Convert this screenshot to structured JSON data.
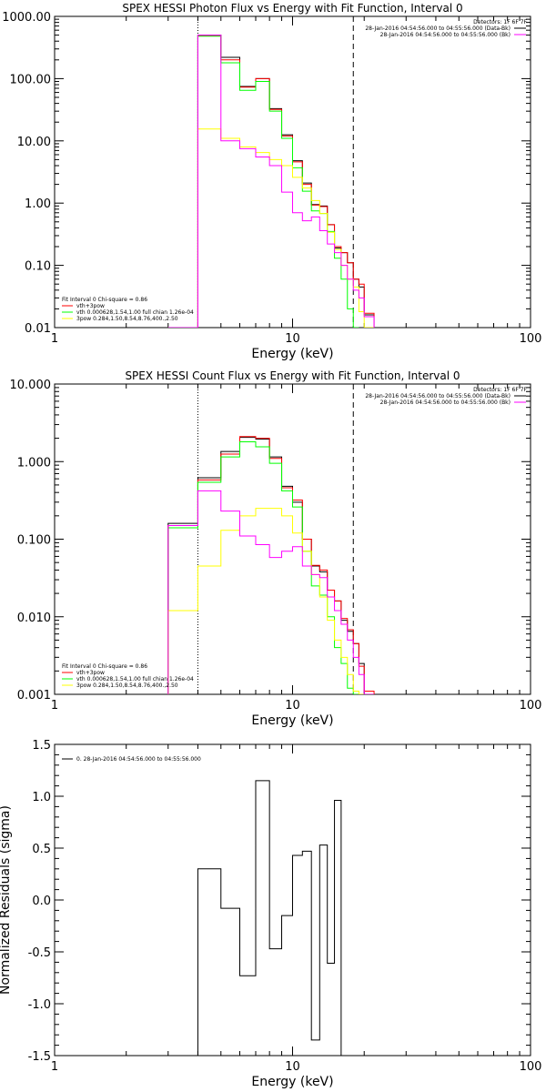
{
  "chart_data": [
    {
      "type": "line",
      "title": "SPEX HESSI Photon Flux vs Energy with Fit Function, Interval 0",
      "xlabel": "Energy (keV)",
      "ylabel": "",
      "xscale": "log",
      "yscale": "log",
      "xlim": [
        1,
        100
      ],
      "ylim": [
        0.01,
        1000
      ],
      "xticks": [
        1,
        10,
        100
      ],
      "xtick_labels": [
        "1",
        "10",
        "100"
      ],
      "yticks": [
        0.01,
        0.1,
        1,
        10,
        100,
        1000
      ],
      "ytick_labels": [
        "0.01",
        "0.10",
        "1.00",
        "10.00",
        "100.00",
        "1000.00"
      ],
      "legend_right": {
        "placement": "top-right",
        "lines": [
          {
            "text": "Detectors: 1F 6F 7F",
            "color": ""
          },
          {
            "text": "28-Jan-2016 04:54:56.000 to 04:55:56.000 (Data-Bk)",
            "color": "#000000"
          },
          {
            "text": "28-Jan-2016 04:54:56.000 to 04:55:56.000 (Bk)",
            "color": "#ff00ff"
          }
        ]
      },
      "legend_left": {
        "placement": "bottom-left",
        "lines": [
          {
            "text": "Fit Interval 0   Chi-square = 0.86",
            "color": ""
          },
          {
            "text": "vth+3pow",
            "color": "#ff0000"
          },
          {
            "text": "vth 0.000628,1.54,1.00  full chian 1.26e-04",
            "color": "#00ff00"
          },
          {
            "text": "3pow 0.284,1.50,8.54,8.76,400.,2.50",
            "color": "#ffff00"
          }
        ]
      },
      "vlines": [
        {
          "x": 4.0,
          "style": "dotted",
          "color": "#000000"
        },
        {
          "x": 18.0,
          "style": "dashed",
          "color": "#000000"
        }
      ],
      "bin_edges": [
        3,
        4,
        5,
        6,
        7,
        8,
        9,
        10,
        11,
        12,
        13,
        14,
        15,
        16,
        17,
        18,
        19,
        20,
        22
      ],
      "series": [
        {
          "color": "#000000",
          "values": [
            0.001,
            500,
            220,
            75,
            100,
            33,
            12.5,
            4.8,
            2.1,
            0.95,
            0.9,
            0.45,
            0.19,
            0.16,
            0.11,
            0.06,
            0.045,
            0.016,
            0.001
          ]
        },
        {
          "color": "#ff0000",
          "values": [
            0.001,
            490,
            200,
            73,
            100,
            32,
            12,
            4.6,
            2.0,
            0.93,
            0.88,
            0.45,
            0.2,
            0.16,
            0.11,
            0.06,
            0.05,
            0.017,
            0.001
          ]
        },
        {
          "color": "#00ff00",
          "values": [
            0.001,
            480,
            180,
            65,
            90,
            30,
            11,
            3.7,
            1.55,
            0.75,
            0.68,
            0.35,
            0.13,
            0.06,
            0.02,
            0.007
          ]
        },
        {
          "color": "#ffff00",
          "values": [
            0.001,
            15.5,
            11,
            8,
            6.5,
            5,
            4,
            2.6,
            1.75,
            1.1,
            0.68,
            0.34,
            0.18,
            0.1,
            0.06,
            0.045,
            0.018,
            0.005
          ]
        },
        {
          "color": "#ff00ff",
          "values": [
            0.001,
            500,
            10,
            7.5,
            5.5,
            4,
            1.5,
            0.7,
            0.52,
            0.6,
            0.36,
            0.22,
            0.16,
            0.1,
            0.06,
            0.04,
            0.03,
            0.015,
            0.001
          ]
        }
      ]
    },
    {
      "type": "line",
      "title": "SPEX HESSI Count Flux vs Energy with Fit Function, Interval 0",
      "xlabel": "Energy (keV)",
      "ylabel": "",
      "xscale": "log",
      "yscale": "log",
      "xlim": [
        1,
        100
      ],
      "ylim": [
        0.001,
        10
      ],
      "xticks": [
        1,
        10,
        100
      ],
      "xtick_labels": [
        "1",
        "10",
        "100"
      ],
      "yticks": [
        0.001,
        0.01,
        0.1,
        1,
        10
      ],
      "ytick_labels": [
        "0.001",
        "0.010",
        "0.100",
        "1.000",
        "10.000"
      ],
      "legend_right": {
        "placement": "top-right",
        "lines": [
          {
            "text": "Detectors: 1F 6F 7F",
            "color": ""
          },
          {
            "text": "28-Jan-2016 04:54:56.000 to 04:55:56.000 (Data-Bk)",
            "color": "#000000"
          },
          {
            "text": "28-Jan-2016 04:54:56.000 to 04:55:56.000 (Bk)",
            "color": "#ff00ff"
          }
        ]
      },
      "legend_left": {
        "placement": "bottom-left",
        "lines": [
          {
            "text": "Fit Interval 0   Chi-square = 0.86",
            "color": ""
          },
          {
            "text": "vth+3pow",
            "color": "#ff0000"
          },
          {
            "text": "vth 0.000628,1.54,1.00  full chian 1.26e-04",
            "color": "#00ff00"
          },
          {
            "text": "3pow 0.284,1.50,8.54,8.76,400.,2.50",
            "color": "#ffff00"
          }
        ]
      },
      "vlines": [
        {
          "x": 4.0,
          "style": "dotted",
          "color": "#000000"
        },
        {
          "x": 18.0,
          "style": "dashed",
          "color": "#000000"
        }
      ],
      "bin_edges": [
        3,
        4,
        5,
        6,
        7,
        8,
        9,
        10,
        11,
        12,
        13,
        14,
        15,
        16,
        17,
        18,
        19,
        20,
        22
      ],
      "series": [
        {
          "color": "#000000",
          "values": [
            0.16,
            0.62,
            1.35,
            2.05,
            1.95,
            1.15,
            0.48,
            0.3,
            0.1,
            0.045,
            0.038,
            0.022,
            0.016,
            0.009,
            0.0065,
            0.0045,
            0.0025,
            0.001
          ]
        },
        {
          "color": "#ff0000",
          "values": [
            0.15,
            0.58,
            1.25,
            2.1,
            2.0,
            1.1,
            0.46,
            0.32,
            0.1,
            0.046,
            0.04,
            0.022,
            0.016,
            0.0095,
            0.0068,
            0.0045,
            0.0023,
            0.0011
          ]
        },
        {
          "color": "#00ff00",
          "values": [
            0.14,
            0.54,
            1.15,
            1.8,
            1.55,
            0.95,
            0.42,
            0.26,
            0.07,
            0.025,
            0.019,
            0.01,
            0.004,
            0.0025,
            0.0012,
            0.0008
          ]
        },
        {
          "color": "#ffff00",
          "values": [
            0.012,
            0.045,
            0.13,
            0.2,
            0.25,
            0.25,
            0.2,
            0.12,
            0.07,
            0.035,
            0.018,
            0.009,
            0.005,
            0.003,
            0.0018,
            0.0011,
            0.0009
          ]
        },
        {
          "color": "#ff00ff",
          "values": [
            0.15,
            0.42,
            0.23,
            0.11,
            0.085,
            0.058,
            0.07,
            0.08,
            0.045,
            0.035,
            0.032,
            0.018,
            0.012,
            0.008,
            0.005,
            0.003,
            0.0018,
            0.0009
          ]
        }
      ]
    },
    {
      "type": "line",
      "title": "",
      "xlabel": "Energy (keV)",
      "ylabel": "Normalized Residuals (sigma)",
      "xscale": "log",
      "yscale": "linear",
      "xlim": [
        1,
        100
      ],
      "ylim": [
        -1.5,
        1.5
      ],
      "xticks": [
        1,
        10,
        100
      ],
      "xtick_labels": [
        "1",
        "10",
        "100"
      ],
      "yticks": [
        -1.5,
        -1.0,
        -0.5,
        0.0,
        0.5,
        1.0,
        1.5
      ],
      "ytick_labels": [
        "-1.5",
        "-1.0",
        "-0.5",
        "0.0",
        "0.5",
        "1.0",
        "1.5"
      ],
      "legend_left": {
        "placement": "top-left",
        "lines": [
          {
            "text": "0. 28-Jan-2016 04:54:56.000 to 04:55:56.000",
            "color": "#000000"
          }
        ]
      },
      "bin_edges": [
        4,
        5,
        6,
        7,
        8,
        9,
        10,
        11,
        12,
        13,
        14,
        15,
        16,
        17,
        18
      ],
      "series": [
        {
          "color": "#000000",
          "values": [
            0.3,
            -0.08,
            -0.73,
            1.15,
            -0.47,
            -0.15,
            0.43,
            0.47,
            -1.35,
            0.53,
            -0.61,
            0.96,
            -1.5
          ]
        }
      ]
    }
  ]
}
